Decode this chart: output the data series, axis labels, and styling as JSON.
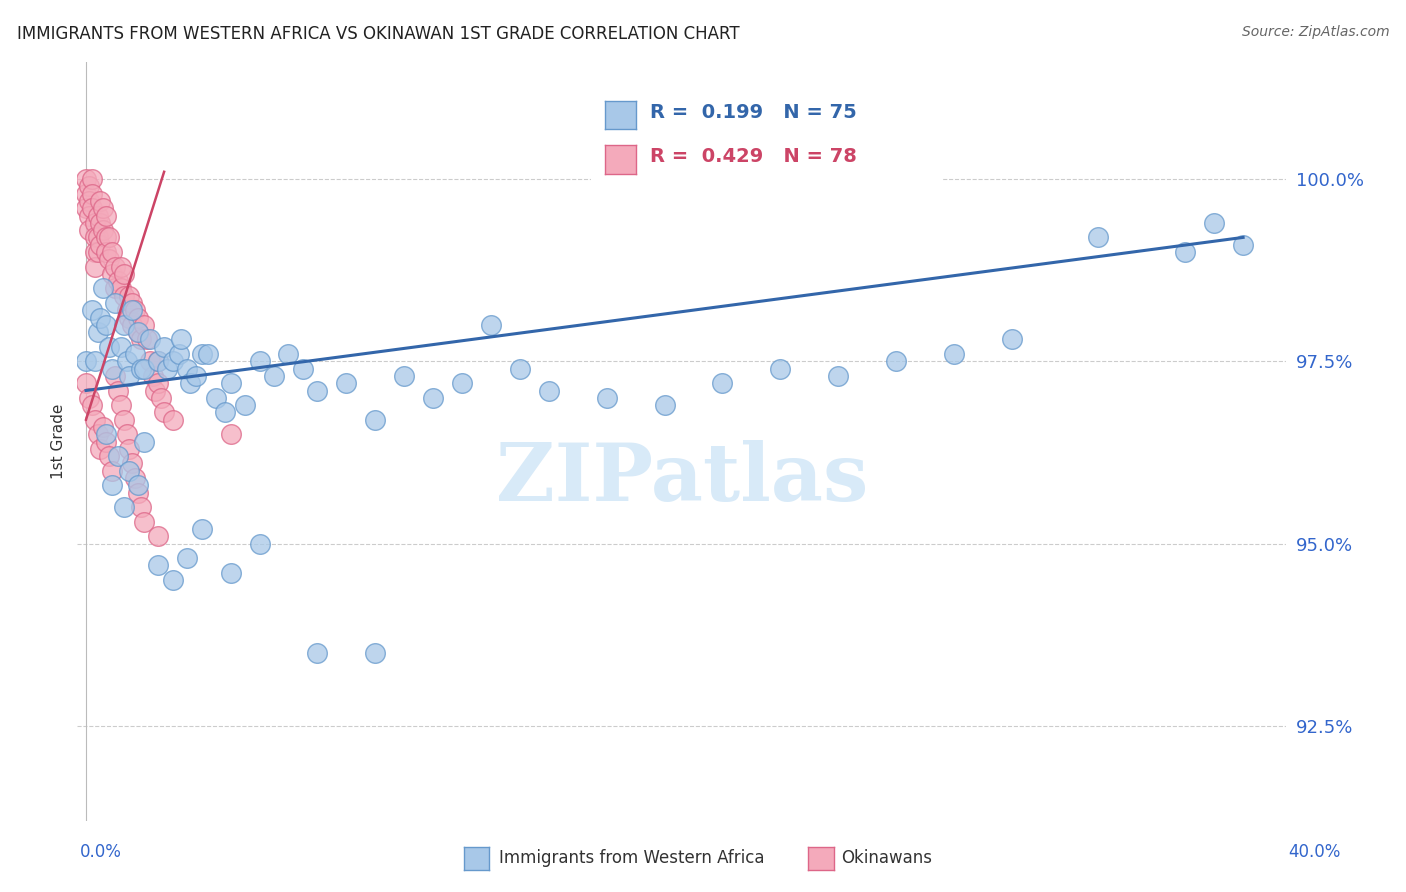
{
  "title": "IMMIGRANTS FROM WESTERN AFRICA VS OKINAWAN 1ST GRADE CORRELATION CHART",
  "source": "Source: ZipAtlas.com",
  "ylabel": "1st Grade",
  "ytick_values": [
    100.0,
    97.5,
    95.0,
    92.5
  ],
  "ymin": 91.2,
  "ymax": 101.6,
  "xmin": -0.003,
  "xmax": 0.415,
  "blue_R": 0.199,
  "blue_N": 75,
  "pink_R": 0.429,
  "pink_N": 78,
  "blue_color": "#a8c8e8",
  "blue_edge_color": "#6699cc",
  "pink_color": "#f4aabb",
  "pink_edge_color": "#dd6688",
  "blue_line_color": "#3366aa",
  "pink_line_color": "#cc4466",
  "watermark_color": "#d8eaf8",
  "axis_color": "#3366cc",
  "grid_color": "#cccccc",
  "title_color": "#222222",
  "source_color": "#666666",
  "blue_trend_x0": 0.0,
  "blue_trend_x1": 0.4,
  "blue_trend_y0": 97.1,
  "blue_trend_y1": 99.2,
  "pink_trend_x0": 0.0,
  "pink_trend_x1": 0.027,
  "pink_trend_y0": 96.7,
  "pink_trend_y1": 100.1,
  "blue_scatter_x": [
    0.0,
    0.002,
    0.003,
    0.004,
    0.005,
    0.006,
    0.007,
    0.008,
    0.009,
    0.01,
    0.012,
    0.013,
    0.014,
    0.015,
    0.016,
    0.017,
    0.018,
    0.019,
    0.02,
    0.022,
    0.025,
    0.027,
    0.028,
    0.03,
    0.032,
    0.033,
    0.035,
    0.036,
    0.038,
    0.04,
    0.042,
    0.045,
    0.048,
    0.05,
    0.055,
    0.06,
    0.065,
    0.07,
    0.075,
    0.08,
    0.09,
    0.1,
    0.11,
    0.12,
    0.13,
    0.14,
    0.15,
    0.16,
    0.18,
    0.2,
    0.22,
    0.24,
    0.26,
    0.28,
    0.3,
    0.32,
    0.35,
    0.38,
    0.39,
    0.4,
    0.007,
    0.009,
    0.011,
    0.013,
    0.015,
    0.018,
    0.02,
    0.025,
    0.03,
    0.035,
    0.04,
    0.05,
    0.06,
    0.08,
    0.1
  ],
  "blue_scatter_y": [
    97.5,
    98.2,
    97.5,
    97.9,
    98.1,
    98.5,
    98.0,
    97.7,
    97.4,
    98.3,
    97.7,
    98.0,
    97.5,
    97.3,
    98.2,
    97.6,
    97.9,
    97.4,
    97.4,
    97.8,
    97.5,
    97.7,
    97.4,
    97.5,
    97.6,
    97.8,
    97.4,
    97.2,
    97.3,
    97.6,
    97.6,
    97.0,
    96.8,
    97.2,
    96.9,
    97.5,
    97.3,
    97.6,
    97.4,
    97.1,
    97.2,
    96.7,
    97.3,
    97.0,
    97.2,
    98.0,
    97.4,
    97.1,
    97.0,
    96.9,
    97.2,
    97.4,
    97.3,
    97.5,
    97.6,
    97.8,
    99.2,
    99.0,
    99.4,
    99.1,
    96.5,
    95.8,
    96.2,
    95.5,
    96.0,
    95.8,
    96.4,
    94.7,
    94.5,
    94.8,
    95.2,
    94.6,
    95.0,
    93.5,
    93.5
  ],
  "pink_scatter_x": [
    0.0,
    0.0,
    0.0,
    0.001,
    0.001,
    0.001,
    0.001,
    0.002,
    0.002,
    0.002,
    0.003,
    0.003,
    0.003,
    0.003,
    0.004,
    0.004,
    0.004,
    0.005,
    0.005,
    0.005,
    0.006,
    0.006,
    0.007,
    0.007,
    0.007,
    0.008,
    0.008,
    0.009,
    0.009,
    0.01,
    0.01,
    0.011,
    0.012,
    0.012,
    0.013,
    0.013,
    0.014,
    0.015,
    0.015,
    0.016,
    0.016,
    0.017,
    0.018,
    0.018,
    0.019,
    0.02,
    0.021,
    0.022,
    0.023,
    0.024,
    0.025,
    0.025,
    0.026,
    0.027,
    0.0,
    0.001,
    0.002,
    0.003,
    0.004,
    0.005,
    0.006,
    0.007,
    0.008,
    0.009,
    0.01,
    0.011,
    0.012,
    0.013,
    0.014,
    0.015,
    0.016,
    0.017,
    0.018,
    0.019,
    0.02,
    0.025,
    0.03,
    0.05
  ],
  "pink_scatter_y": [
    100.0,
    99.8,
    99.6,
    99.9,
    99.7,
    99.5,
    99.3,
    100.0,
    99.8,
    99.6,
    99.4,
    99.2,
    99.0,
    98.8,
    99.5,
    99.2,
    99.0,
    99.7,
    99.4,
    99.1,
    99.6,
    99.3,
    99.5,
    99.2,
    99.0,
    99.2,
    98.9,
    99.0,
    98.7,
    98.8,
    98.5,
    98.6,
    98.8,
    98.5,
    98.7,
    98.4,
    98.2,
    98.4,
    98.1,
    98.3,
    98.0,
    98.2,
    97.9,
    98.1,
    97.8,
    98.0,
    97.8,
    97.5,
    97.3,
    97.1,
    97.5,
    97.2,
    97.0,
    96.8,
    97.2,
    97.0,
    96.9,
    96.7,
    96.5,
    96.3,
    96.6,
    96.4,
    96.2,
    96.0,
    97.3,
    97.1,
    96.9,
    96.7,
    96.5,
    96.3,
    96.1,
    95.9,
    95.7,
    95.5,
    95.3,
    95.1,
    96.7,
    96.5
  ]
}
